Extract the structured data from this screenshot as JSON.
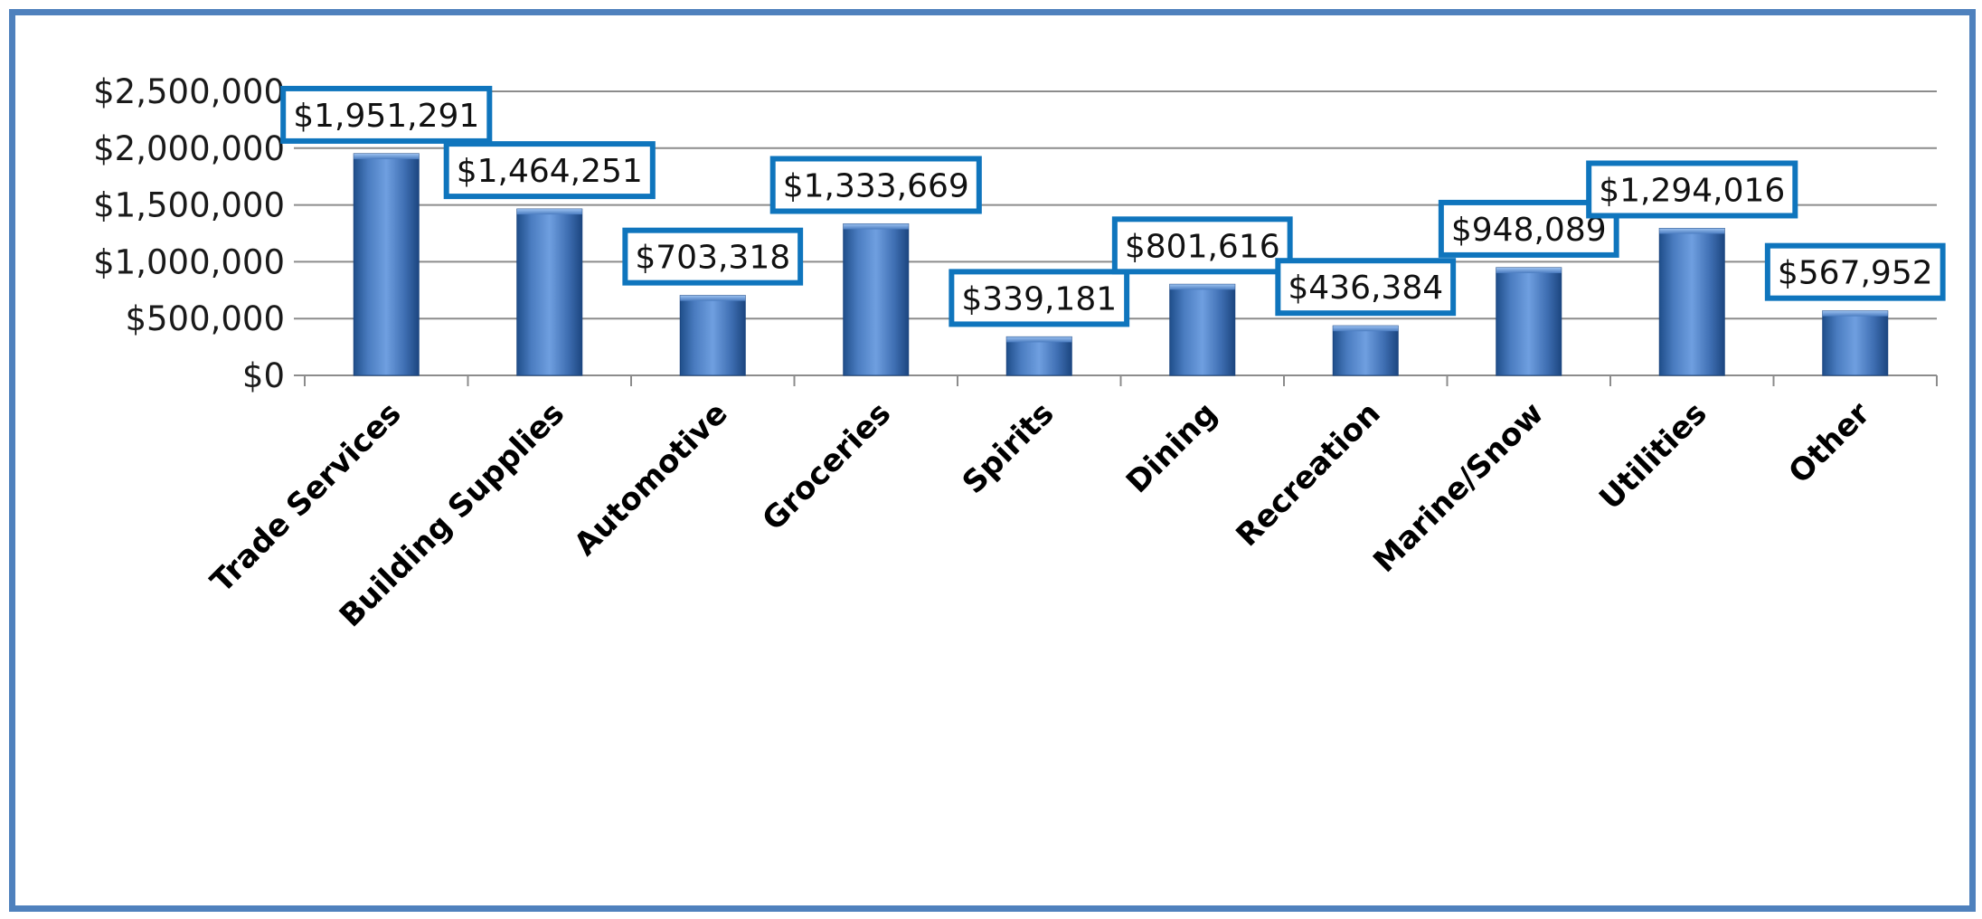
{
  "chart_data": {
    "type": "bar",
    "title": "",
    "xlabel": "",
    "ylabel": "",
    "ylim": [
      0,
      2500000
    ],
    "ytick_values": [
      0,
      500000,
      1000000,
      1500000,
      2000000,
      2500000
    ],
    "ytick_labels": [
      "$0",
      "$500,000",
      "$1,000,000",
      "$1,500,000",
      "$2,000,000",
      "$2,500,000"
    ],
    "grid": true,
    "legend": "none",
    "categories": [
      "Trade Services",
      "Building Supplies",
      "Automotive",
      "Groceries",
      "Spirits",
      "Dining",
      "Recreation",
      "Marine/Snow",
      "Utilities",
      "Other"
    ],
    "values": [
      1951291,
      1464251,
      703318,
      1333669,
      339181,
      801616,
      436384,
      948089,
      1294016,
      567952
    ],
    "data_labels": [
      "$1,951,291",
      "$1,464,251",
      "$703,318",
      "$1,333,669",
      "$339,181",
      "$801,616",
      "$436,384",
      "$948,089",
      "$1,294,016",
      "$567,952"
    ],
    "bar_color": "#4f81bd",
    "label_border_color": "#0f75bd",
    "frame_color": "#4f81bd"
  }
}
